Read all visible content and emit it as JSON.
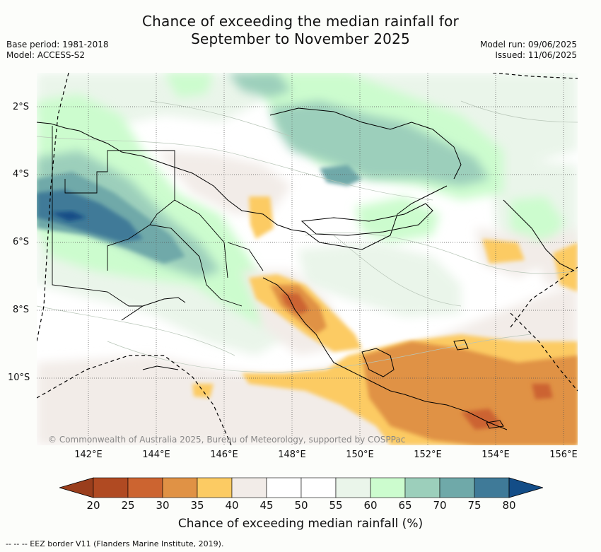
{
  "title_line1": "Chance of exceeding the median rainfall for",
  "title_line2": "September to November 2025",
  "meta_left": [
    "Base period: 1981-2018",
    "Model: ACCESS-S2"
  ],
  "meta_right": [
    "Model run: 09/06/2025",
    "Issued: 11/06/2025"
  ],
  "lat_labels": [
    "2°S",
    "4°S",
    "6°S",
    "8°S",
    "10°S"
  ],
  "lon_labels": [
    "142°E",
    "144°E",
    "146°E",
    "148°E",
    "150°E",
    "152°E",
    "154°E",
    "156°E"
  ],
  "copyright": "© Commonwealth of Australia 2025, Bureau of Meteorology, supported by COSPPac",
  "colorbar": {
    "ticks": [
      "20",
      "25",
      "30",
      "35",
      "40",
      "45",
      "50",
      "55",
      "60",
      "65",
      "70",
      "75",
      "80"
    ],
    "colors": [
      "#b04a22",
      "#cc6430",
      "#e09245",
      "#fccb63",
      "#f2ece8",
      "#ffffff",
      "#ffffff",
      "#eaf5ea",
      "#ccfcce",
      "#9ccfbb",
      "#6fa9a9",
      "#3f7a98"
    ],
    "under_color": "#9a3e1c",
    "over_color": "#134d87",
    "label": "Chance of exceeding median rainfall (%)"
  },
  "legend": "-- -- -- EEZ border V11 (Flanders Marine Institute, 2019)."
}
